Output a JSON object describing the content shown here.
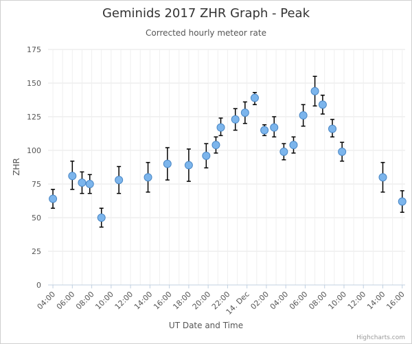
{
  "chart_data": {
    "type": "scatter",
    "title": "Geminids 2017 ZHR Graph - Peak",
    "subtitle": "Corrected hourly meteor rate",
    "xlabel": "UT Date and Time",
    "ylabel": "ZHR",
    "credit": "Highcharts.com",
    "ylim": [
      0,
      175
    ],
    "yticks": [
      0,
      25,
      50,
      75,
      100,
      125,
      150,
      175
    ],
    "x_range_hours": [
      3.5,
      40.3
    ],
    "xticks": [
      {
        "label": "04:00",
        "hour": 4
      },
      {
        "label": "06:00",
        "hour": 6
      },
      {
        "label": "08:00",
        "hour": 8
      },
      {
        "label": "10:00",
        "hour": 10
      },
      {
        "label": "12:00",
        "hour": 12
      },
      {
        "label": "14:00",
        "hour": 14
      },
      {
        "label": "16:00",
        "hour": 16
      },
      {
        "label": "18:00",
        "hour": 18
      },
      {
        "label": "20:00",
        "hour": 20
      },
      {
        "label": "22:00",
        "hour": 22
      },
      {
        "label": "14. Dec",
        "hour": 24
      },
      {
        "label": "02:00",
        "hour": 26
      },
      {
        "label": "04:00",
        "hour": 28
      },
      {
        "label": "06:00",
        "hour": 30
      },
      {
        "label": "08:00",
        "hour": 32
      },
      {
        "label": "10:00",
        "hour": 34
      },
      {
        "label": "12:00",
        "hour": 36
      },
      {
        "label": "14:00",
        "hour": 38
      },
      {
        "label": "16:00",
        "hour": 40
      }
    ],
    "grid": true,
    "marker_color": "#7cb5ec",
    "errorbar_color": "#000000",
    "points": [
      {
        "x": 4.0,
        "y": 64,
        "low": 57,
        "high": 71
      },
      {
        "x": 6.0,
        "y": 81,
        "low": 71,
        "high": 92
      },
      {
        "x": 7.0,
        "y": 76,
        "low": 68,
        "high": 84
      },
      {
        "x": 7.8,
        "y": 75,
        "low": 68,
        "high": 82
      },
      {
        "x": 9.0,
        "y": 50,
        "low": 43,
        "high": 57
      },
      {
        "x": 10.8,
        "y": 78,
        "low": 68,
        "high": 88
      },
      {
        "x": 13.8,
        "y": 80,
        "low": 69,
        "high": 91
      },
      {
        "x": 15.8,
        "y": 90,
        "low": 78,
        "high": 102
      },
      {
        "x": 18.0,
        "y": 89,
        "low": 77,
        "high": 101
      },
      {
        "x": 19.8,
        "y": 96,
        "low": 87,
        "high": 105
      },
      {
        "x": 20.8,
        "y": 104,
        "low": 98,
        "high": 110
      },
      {
        "x": 21.3,
        "y": 117,
        "low": 111,
        "high": 124
      },
      {
        "x": 22.8,
        "y": 123,
        "low": 115,
        "high": 131
      },
      {
        "x": 23.8,
        "y": 128,
        "low": 120,
        "high": 136
      },
      {
        "x": 24.8,
        "y": 139,
        "low": 134,
        "high": 143
      },
      {
        "x": 25.8,
        "y": 115,
        "low": 111,
        "high": 119
      },
      {
        "x": 26.8,
        "y": 117,
        "low": 110,
        "high": 125
      },
      {
        "x": 27.8,
        "y": 99,
        "low": 93,
        "high": 105
      },
      {
        "x": 28.8,
        "y": 104,
        "low": 98,
        "high": 110
      },
      {
        "x": 29.8,
        "y": 126,
        "low": 118,
        "high": 134
      },
      {
        "x": 31.0,
        "y": 144,
        "low": 133,
        "high": 155
      },
      {
        "x": 31.8,
        "y": 134,
        "low": 127,
        "high": 141
      },
      {
        "x": 32.8,
        "y": 116,
        "low": 110,
        "high": 123
      },
      {
        "x": 33.8,
        "y": 99,
        "low": 92,
        "high": 106
      },
      {
        "x": 38.0,
        "y": 80,
        "low": 69,
        "high": 91
      },
      {
        "x": 40.0,
        "y": 62,
        "low": 54,
        "high": 70
      }
    ]
  }
}
